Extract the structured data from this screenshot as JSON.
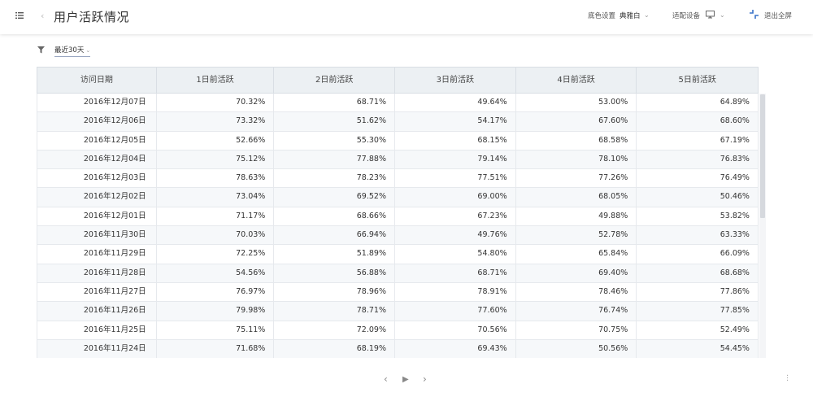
{
  "header": {
    "title": "用户活跃情况",
    "bg_setting_label": "底色设置",
    "bg_setting_value": "典雅白",
    "device_label": "适配设备",
    "exit_fullscreen": "退出全屏"
  },
  "filter": {
    "range_label": "最近30天"
  },
  "table": {
    "columns": [
      "访问日期",
      "1日前活跃",
      "2日前活跃",
      "3日前活跃",
      "4日前活跃",
      "5日前活跃"
    ],
    "rows": [
      [
        "2016年12月07日",
        "70.32%",
        "68.71%",
        "49.64%",
        "53.00%",
        "64.89%"
      ],
      [
        "2016年12月06日",
        "73.32%",
        "51.62%",
        "54.17%",
        "67.60%",
        "68.60%"
      ],
      [
        "2016年12月05日",
        "52.66%",
        "55.30%",
        "68.15%",
        "68.58%",
        "67.19%"
      ],
      [
        "2016年12月04日",
        "75.12%",
        "77.88%",
        "79.14%",
        "78.10%",
        "76.83%"
      ],
      [
        "2016年12月03日",
        "78.63%",
        "78.23%",
        "77.51%",
        "77.26%",
        "76.49%"
      ],
      [
        "2016年12月02日",
        "73.04%",
        "69.52%",
        "69.00%",
        "68.05%",
        "50.46%"
      ],
      [
        "2016年12月01日",
        "71.17%",
        "68.66%",
        "67.23%",
        "49.88%",
        "53.82%"
      ],
      [
        "2016年11月30日",
        "70.03%",
        "66.94%",
        "49.76%",
        "52.78%",
        "63.33%"
      ],
      [
        "2016年11月29日",
        "72.25%",
        "51.89%",
        "54.80%",
        "65.84%",
        "66.09%"
      ],
      [
        "2016年11月28日",
        "54.56%",
        "56.88%",
        "68.71%",
        "69.40%",
        "68.68%"
      ],
      [
        "2016年11月27日",
        "76.97%",
        "78.96%",
        "78.91%",
        "78.46%",
        "77.86%"
      ],
      [
        "2016年11月26日",
        "79.98%",
        "78.71%",
        "77.60%",
        "76.74%",
        "77.85%"
      ],
      [
        "2016年11月25日",
        "75.11%",
        "72.09%",
        "70.56%",
        "70.75%",
        "52.49%"
      ],
      [
        "2016年11月24日",
        "71.68%",
        "68.19%",
        "69.43%",
        "50.56%",
        "54.45%"
      ]
    ]
  },
  "pager": {
    "prev": "‹",
    "play": "▶",
    "next": "›"
  },
  "icons": {
    "menu": "list-icon",
    "back": "chevron-left-icon",
    "filter": "filter-icon",
    "device": "monitor-icon",
    "exit": "exit-fullscreen-icon",
    "more": "more-vertical-icon"
  }
}
